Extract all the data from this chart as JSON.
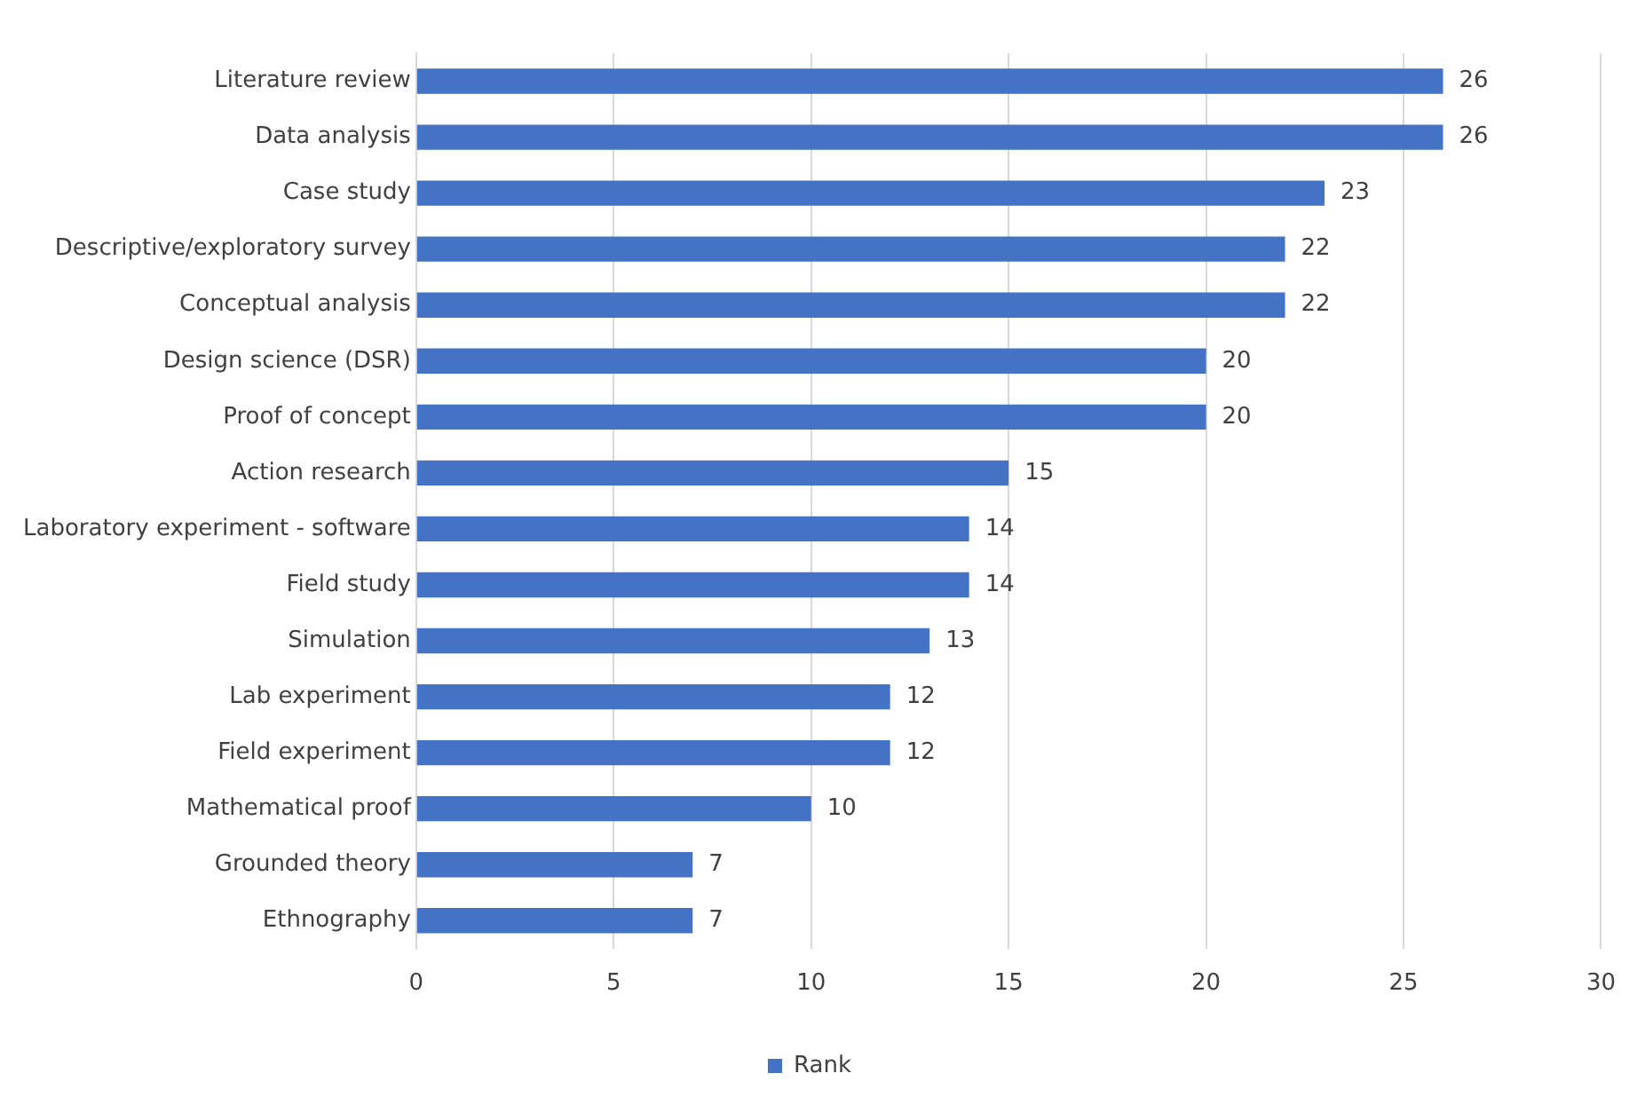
{
  "chart_data": {
    "type": "bar",
    "orientation": "horizontal",
    "categories": [
      "Literature review",
      "Data analysis",
      "Case study",
      "Descriptive/exploratory survey",
      "Conceptual analysis",
      "Design science (DSR)",
      "Proof of concept",
      "Action research",
      "Laboratory experiment - software",
      "Field study",
      "Simulation",
      "Lab experiment",
      "Field experiment",
      "Mathematical proof",
      "Grounded theory",
      "Ethnography"
    ],
    "series": [
      {
        "name": "Rank",
        "color": "#4472c4",
        "values": [
          26,
          26,
          23,
          22,
          22,
          20,
          20,
          15,
          14,
          14,
          13,
          12,
          12,
          10,
          7,
          7
        ]
      }
    ],
    "xlim": [
      0,
      30
    ],
    "xticks": [
      0,
      5,
      10,
      15,
      20,
      25,
      30
    ],
    "grid": "x",
    "legend": "bottom",
    "data_labels": true
  }
}
